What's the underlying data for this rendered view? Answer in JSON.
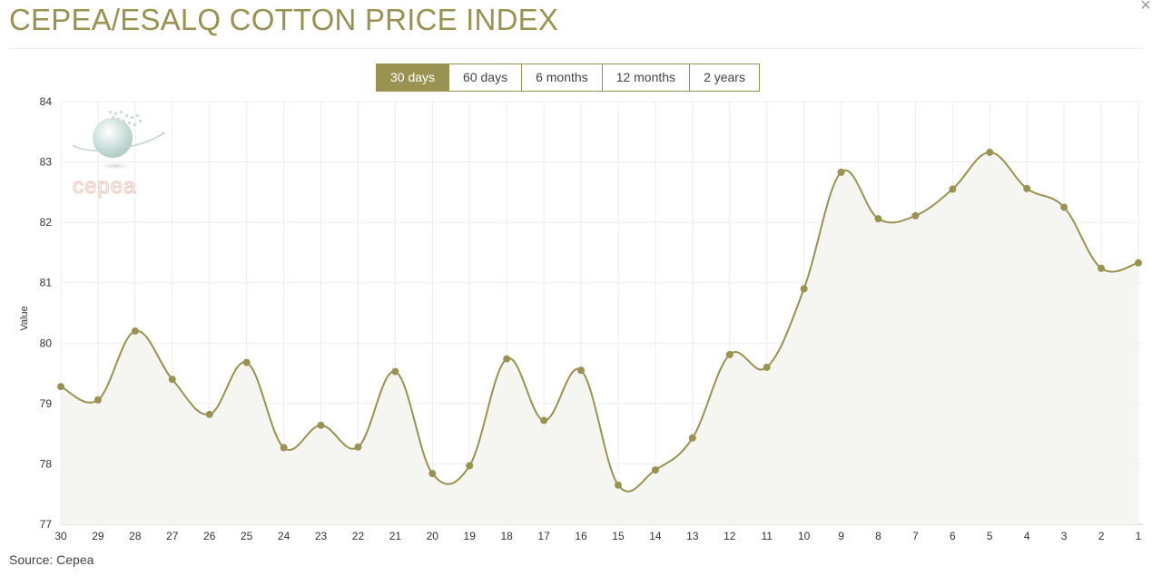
{
  "page": {
    "title": "CEPEA/ESALQ COTTON PRICE INDEX",
    "close_label": "×",
    "source": "Source: Cepea"
  },
  "range_buttons": [
    {
      "label": "30 days",
      "active": true
    },
    {
      "label": "60 days",
      "active": false
    },
    {
      "label": "6 months",
      "active": false
    },
    {
      "label": "12 months",
      "active": false
    },
    {
      "label": "2 years",
      "active": false
    }
  ],
  "logo": {
    "text": "cepea"
  },
  "colors": {
    "accent": "#9a9252",
    "line": "#9a9252",
    "area_fill": "#f4f4ef",
    "grid": "#ededed",
    "axis_text": "#333333",
    "logo_text": "#eacac2"
  },
  "chart_data": {
    "type": "line",
    "title": "",
    "xlabel": "",
    "ylabel": "Value",
    "categories": [
      "30",
      "29",
      "28",
      "27",
      "26",
      "25",
      "24",
      "23",
      "22",
      "21",
      "20",
      "19",
      "18",
      "17",
      "16",
      "15",
      "14",
      "13",
      "12",
      "11",
      "10",
      "9",
      "8",
      "7",
      "6",
      "5",
      "4",
      "3",
      "2",
      "1"
    ],
    "series": [
      {
        "values": [
          79.28,
          79.06,
          80.2,
          79.4,
          78.82,
          79.68,
          78.27,
          78.64,
          78.28,
          79.53,
          77.84,
          77.97,
          79.74,
          78.72,
          79.55,
          77.65,
          77.9,
          78.43,
          79.81,
          79.6,
          80.9,
          82.83,
          82.06,
          82.11,
          82.55,
          83.16,
          82.56,
          82.25,
          81.24,
          81.33
        ]
      }
    ],
    "yticks": [
      77,
      78,
      79,
      80,
      81,
      82,
      83,
      84
    ],
    "ylim": [
      77,
      84
    ],
    "grid": true,
    "area_fill": true,
    "smooth": true
  }
}
